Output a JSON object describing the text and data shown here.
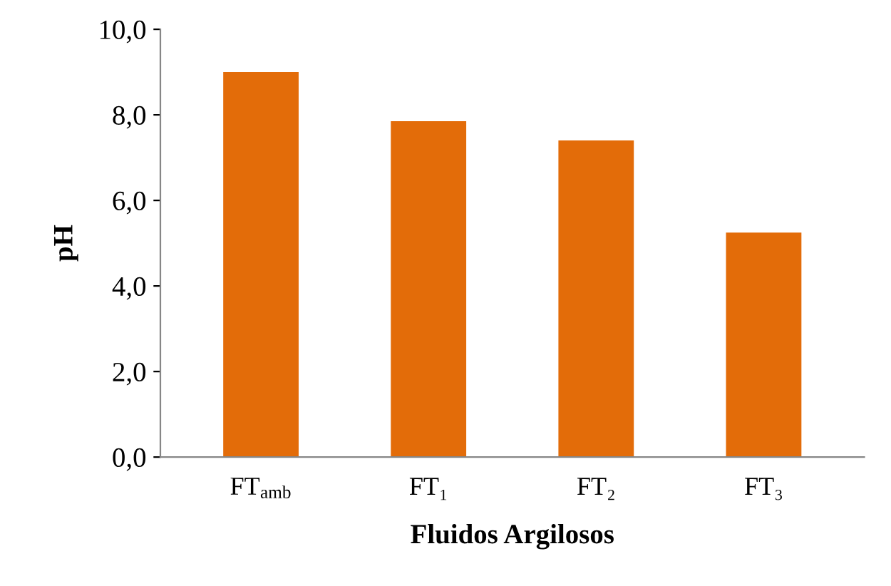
{
  "chart_data": {
    "type": "bar",
    "xlabel": "Fluidos Argilosos",
    "ylabel": "pH",
    "categories": [
      "FT$_{amb}$",
      "FT₁",
      "FT₂",
      "FT₃"
    ],
    "values": [
      9.0,
      7.85,
      7.4,
      5.25
    ],
    "color": "#e36c09",
    "ylim": [
      0,
      10
    ],
    "yticks": [
      {
        "value": 0,
        "label": "0,0"
      },
      {
        "value": 2,
        "label": "2,0"
      },
      {
        "value": 4,
        "label": "4,0"
      },
      {
        "value": 6,
        "label": "6,0"
      },
      {
        "value": 8,
        "label": "8,0"
      },
      {
        "value": 10,
        "label": "10,0"
      }
    ],
    "grid": false
  }
}
